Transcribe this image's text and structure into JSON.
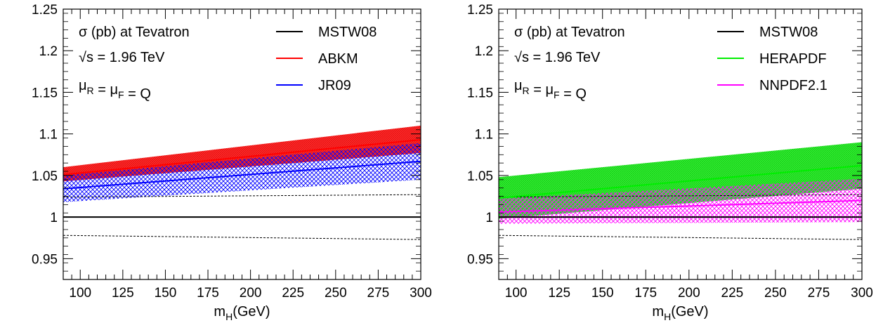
{
  "chart_data": [
    {
      "type": "area",
      "xlabel": "m_H(GeV)",
      "xlim": [
        90,
        300
      ],
      "ylim": [
        0.925,
        1.25
      ],
      "x_ticks": [
        100,
        125,
        150,
        175,
        200,
        225,
        250,
        275,
        300
      ],
      "y_ticks": [
        0.95,
        1,
        1.05,
        1.1,
        1.15,
        1.2,
        1.25
      ],
      "y_tick_labels": [
        "0.95",
        "1",
        "1.05",
        "1.1",
        "1.15",
        "1.2",
        "1.25"
      ],
      "annotations": [
        "σ (pb) at Tevatron",
        "√s = 1.96 TeV",
        "μ_R = μ_F = Q"
      ],
      "legend_position": "top-right",
      "x": [
        90,
        300
      ],
      "series": [
        {
          "name": "MSTW08",
          "color": "#000000",
          "style": "solid",
          "central": [
            1.0,
            1.0
          ]
        },
        {
          "name": "MSTW08 band",
          "color": "#000000",
          "style": "dashed",
          "upper": [
            1.024,
            1.027
          ],
          "lower": [
            0.978,
            0.973
          ]
        },
        {
          "name": "ABKM",
          "color": "#ff0000",
          "fill": "dense",
          "central": [
            1.051,
            1.093
          ],
          "upper": [
            1.06,
            1.11
          ],
          "lower": [
            1.043,
            1.077
          ]
        },
        {
          "name": "JR09",
          "color": "#0000ff",
          "fill": "hatch",
          "central": [
            1.034,
            1.067
          ],
          "upper": [
            1.05,
            1.089
          ],
          "lower": [
            1.018,
            1.045
          ]
        }
      ]
    },
    {
      "type": "area",
      "xlabel": "m_H(GeV)",
      "xlim": [
        90,
        300
      ],
      "ylim": [
        0.925,
        1.25
      ],
      "x_ticks": [
        100,
        125,
        150,
        175,
        200,
        225,
        250,
        275,
        300
      ],
      "y_ticks": [
        0.95,
        1,
        1.05,
        1.1,
        1.15,
        1.2,
        1.25
      ],
      "y_tick_labels": [
        "0.95",
        "1",
        "1.05",
        "1.1",
        "1.15",
        "1.2",
        "1.25"
      ],
      "annotations": [
        "σ (pb) at Tevatron",
        "√s = 1.96 TeV",
        "μ_R = μ_F = Q"
      ],
      "legend_position": "top-right",
      "x": [
        90,
        300
      ],
      "series": [
        {
          "name": "MSTW08",
          "color": "#000000",
          "style": "solid",
          "central": [
            1.0,
            1.0
          ]
        },
        {
          "name": "MSTW08 band",
          "color": "#000000",
          "style": "dashed",
          "upper": [
            1.024,
            1.027
          ],
          "lower": [
            0.978,
            0.973
          ]
        },
        {
          "name": "HERAPDF",
          "color": "#00ee00",
          "fill": "dense",
          "central": [
            1.023,
            1.062
          ],
          "upper": [
            1.048,
            1.09
          ],
          "lower": [
            0.998,
            1.034
          ]
        },
        {
          "name": "NNPDF2.1",
          "color": "#ff00ff",
          "fill": "hatch",
          "central": [
            1.006,
            1.02
          ],
          "upper": [
            1.022,
            1.046
          ],
          "lower": [
            0.992,
            0.994
          ]
        }
      ]
    }
  ]
}
